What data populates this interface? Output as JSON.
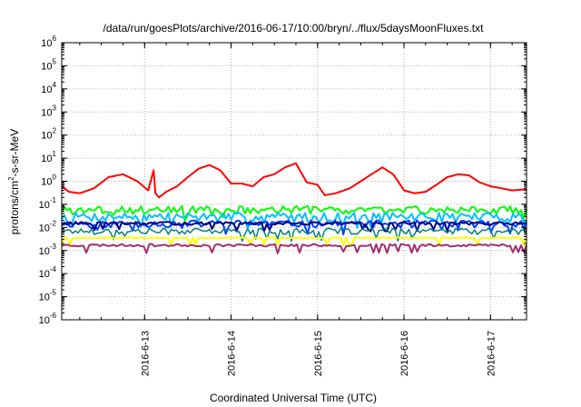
{
  "chart_data": {
    "type": "line",
    "title": "/data/run/goesPlots/archive/2016-06-17/10:00/bryn/../flux/5daysMoonFluxes.txt",
    "xlabel": "Coordinated Universal Time (UTC)",
    "ylabel_parts": [
      "protons/cm",
      "2",
      "-s-sr-MeV"
    ],
    "y_scale": "log",
    "ylim": [
      1e-06,
      1000000.0
    ],
    "xlim": [
      "2016-06-12T01:00",
      "2016-06-17T10:00"
    ],
    "y_ticks": [
      {
        "value": 1e-06,
        "base": "10",
        "exp": "-6"
      },
      {
        "value": 1e-05,
        "base": "10",
        "exp": "-5"
      },
      {
        "value": 0.0001,
        "base": "10",
        "exp": "-4"
      },
      {
        "value": 0.001,
        "base": "10",
        "exp": "-3"
      },
      {
        "value": 0.01,
        "base": "10",
        "exp": "-2"
      },
      {
        "value": 0.1,
        "base": "10",
        "exp": "-1"
      },
      {
        "value": 1,
        "base": "10",
        "exp": "0"
      },
      {
        "value": 10,
        "base": "10",
        "exp": "1"
      },
      {
        "value": 100,
        "base": "10",
        "exp": "2"
      },
      {
        "value": 1000,
        "base": "10",
        "exp": "3"
      },
      {
        "value": 10000,
        "base": "10",
        "exp": "4"
      },
      {
        "value": 100000,
        "base": "10",
        "exp": "5"
      },
      {
        "value": 1000000,
        "base": "10",
        "exp": "6"
      }
    ],
    "x_ticks": [
      {
        "value": "2016-06-13T00:00",
        "label": "2016-6-13"
      },
      {
        "value": "2016-06-14T00:00",
        "label": "2016-6-14"
      },
      {
        "value": "2016-06-15T00:00",
        "label": "2016-6-15"
      },
      {
        "value": "2016-06-16T00:00",
        "label": "2016-6-16"
      },
      {
        "value": "2016-06-17T00:00",
        "label": "2016-6-17"
      }
    ],
    "grid": true,
    "series": [
      {
        "color": "#ff0000",
        "width": 2,
        "x": [
          "2016-06-12T01:00",
          "2016-06-12T03:00",
          "2016-06-12T06:00",
          "2016-06-12T10:00",
          "2016-06-12T14:00",
          "2016-06-12T18:00",
          "2016-06-12T22:00",
          "2016-06-13T01:00",
          "2016-06-13T02:30",
          "2016-06-13T03:00",
          "2016-06-13T04:00",
          "2016-06-13T06:00",
          "2016-06-13T09:00",
          "2016-06-13T12:00",
          "2016-06-13T15:00",
          "2016-06-13T18:00",
          "2016-06-13T21:00",
          "2016-06-14T00:00",
          "2016-06-14T03:00",
          "2016-06-14T06:00",
          "2016-06-14T09:00",
          "2016-06-14T12:00",
          "2016-06-14T15:00",
          "2016-06-14T18:00",
          "2016-06-14T21:00",
          "2016-06-15T00:00",
          "2016-06-15T02:00",
          "2016-06-15T05:00",
          "2016-06-15T09:00",
          "2016-06-15T12:00",
          "2016-06-15T15:00",
          "2016-06-15T18:00",
          "2016-06-15T21:00",
          "2016-06-16T00:00",
          "2016-06-16T03:00",
          "2016-06-16T06:00",
          "2016-06-16T09:00",
          "2016-06-16T12:00",
          "2016-06-16T15:00",
          "2016-06-16T18:00",
          "2016-06-16T21:00",
          "2016-06-17T00:00",
          "2016-06-17T03:00",
          "2016-06-17T06:00",
          "2016-06-17T10:00"
        ],
        "y": [
          0.6,
          0.35,
          0.3,
          0.5,
          1.5,
          2.0,
          1.0,
          0.4,
          3.0,
          0.3,
          0.2,
          0.35,
          0.6,
          1.5,
          3.5,
          5.0,
          3.0,
          0.8,
          0.8,
          0.6,
          1.5,
          2.0,
          4.0,
          6.0,
          0.9,
          0.7,
          0.25,
          0.3,
          0.5,
          1.0,
          2.0,
          4.0,
          2.0,
          0.4,
          0.3,
          0.35,
          0.7,
          1.5,
          2.0,
          1.8,
          0.9,
          0.6,
          0.5,
          0.4,
          0.45
        ]
      },
      {
        "color": "#00ff00",
        "width": 2,
        "base": 0.06,
        "amp": 0.4,
        "seed": 3
      },
      {
        "color": "#00c0ff",
        "width": 2,
        "base": 0.03,
        "amp": 0.45,
        "seed": 7
      },
      {
        "color": "#0040ff",
        "width": 2,
        "base": 0.015,
        "amp": 0.35,
        "seed": 11
      },
      {
        "color": "#000080",
        "width": 2,
        "base": 0.015,
        "amp": 0.15,
        "seed": 13
      },
      {
        "color": "#008080",
        "width": 1.5,
        "base": 0.007,
        "amp": 0.3,
        "seed": 17
      },
      {
        "color": "#ffff00",
        "width": 2,
        "base": 0.0035,
        "amp": 0.05,
        "seed": 19
      },
      {
        "color": "#a03070",
        "width": 2,
        "base": 0.0017,
        "amp": 0.12,
        "seed": 23
      }
    ]
  }
}
